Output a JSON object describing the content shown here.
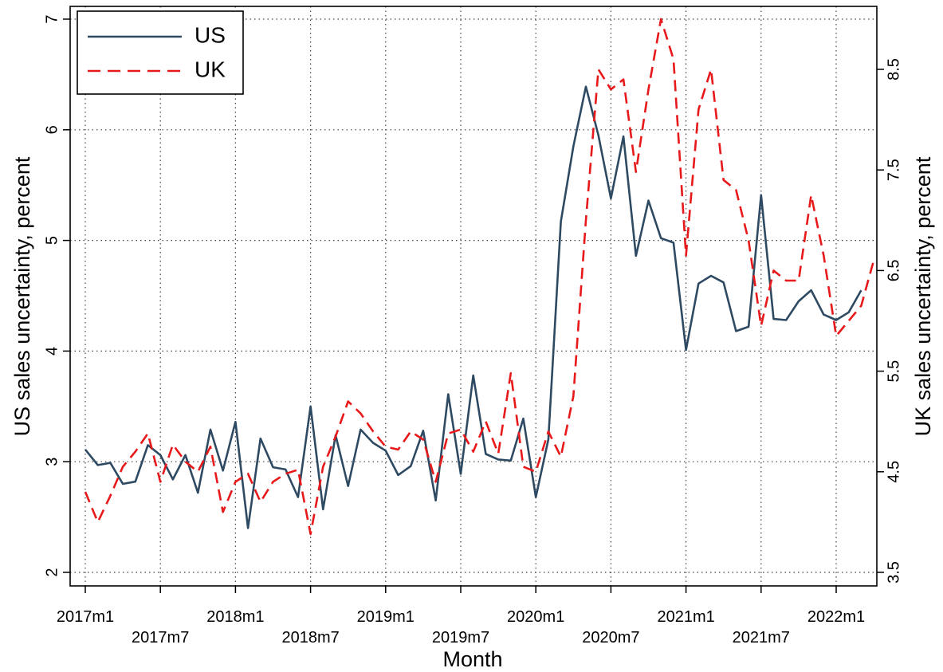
{
  "chart_data": {
    "type": "line",
    "xlabel": "Month",
    "ylabel_left": "US sales uncertainty, percent",
    "ylabel_right": "UK sales uncertainty, percent",
    "x_tick_labels": [
      "2017m1",
      "2017m7",
      "2018m1",
      "2018m7",
      "2019m1",
      "2019m7",
      "2020m1",
      "2020m7",
      "2021m1",
      "2021m7",
      "2022m1"
    ],
    "x_tick_months": [
      0,
      6,
      12,
      18,
      24,
      30,
      36,
      42,
      48,
      54,
      60
    ],
    "y_left": {
      "min": 2,
      "max": 7,
      "ticks": [
        2,
        3,
        4,
        5,
        6,
        7
      ],
      "tick_labels": [
        "2",
        "3",
        "4",
        "5",
        "6",
        "7"
      ]
    },
    "y_right": {
      "min": 3.5,
      "max": 8.5,
      "ticks": [
        3.5,
        4.5,
        5.5,
        6.5,
        7.5,
        8.5
      ],
      "tick_labels": [
        "3.5",
        "4.5",
        "5.5",
        "6.5",
        "7.5",
        "8.5"
      ],
      "range_at_left_extent": [
        3.236,
        9.018
      ]
    },
    "grid": true,
    "legend_position": "top-left",
    "series": [
      {
        "name": "US",
        "axis": "left",
        "color": "#2e4a62",
        "style": "solid",
        "values": [
          3.11,
          2.97,
          2.99,
          2.8,
          2.82,
          3.15,
          3.06,
          2.84,
          3.06,
          2.72,
          3.29,
          2.92,
          3.36,
          2.4,
          3.21,
          2.95,
          2.93,
          2.68,
          3.5,
          2.57,
          3.24,
          2.78,
          3.29,
          3.17,
          3.1,
          2.88,
          2.96,
          3.28,
          2.65,
          3.61,
          2.89,
          3.78,
          3.07,
          3.02,
          3.01,
          3.39,
          2.68,
          3.2,
          5.17,
          5.85,
          6.39,
          5.95,
          5.38,
          5.94,
          4.86,
          5.36,
          5.02,
          4.98,
          4.01,
          4.61,
          4.68,
          4.62,
          4.18,
          4.22,
          5.41,
          4.29,
          4.28,
          4.45,
          4.55,
          4.33,
          4.28,
          4.35,
          4.55
        ]
      },
      {
        "name": "UK",
        "axis": "right",
        "color": "#e8191b",
        "style": "dashed",
        "values": [
          4.3,
          4.0,
          4.26,
          4.55,
          4.7,
          4.88,
          4.4,
          4.77,
          4.6,
          4.5,
          4.75,
          4.1,
          4.4,
          4.48,
          4.2,
          4.4,
          4.48,
          4.52,
          3.88,
          4.55,
          4.85,
          5.2,
          5.08,
          4.9,
          4.75,
          4.72,
          4.9,
          4.82,
          4.4,
          4.88,
          4.92,
          4.7,
          5.0,
          4.68,
          5.48,
          4.55,
          4.5,
          4.9,
          4.65,
          5.25,
          7.0,
          8.5,
          8.3,
          8.4,
          7.48,
          8.3,
          9.0,
          8.6,
          6.65,
          8.1,
          8.5,
          7.4,
          7.3,
          6.8,
          5.95,
          6.5,
          6.4,
          6.4,
          7.25,
          6.65,
          5.85,
          6.0,
          6.15,
          6.6
        ]
      }
    ]
  }
}
